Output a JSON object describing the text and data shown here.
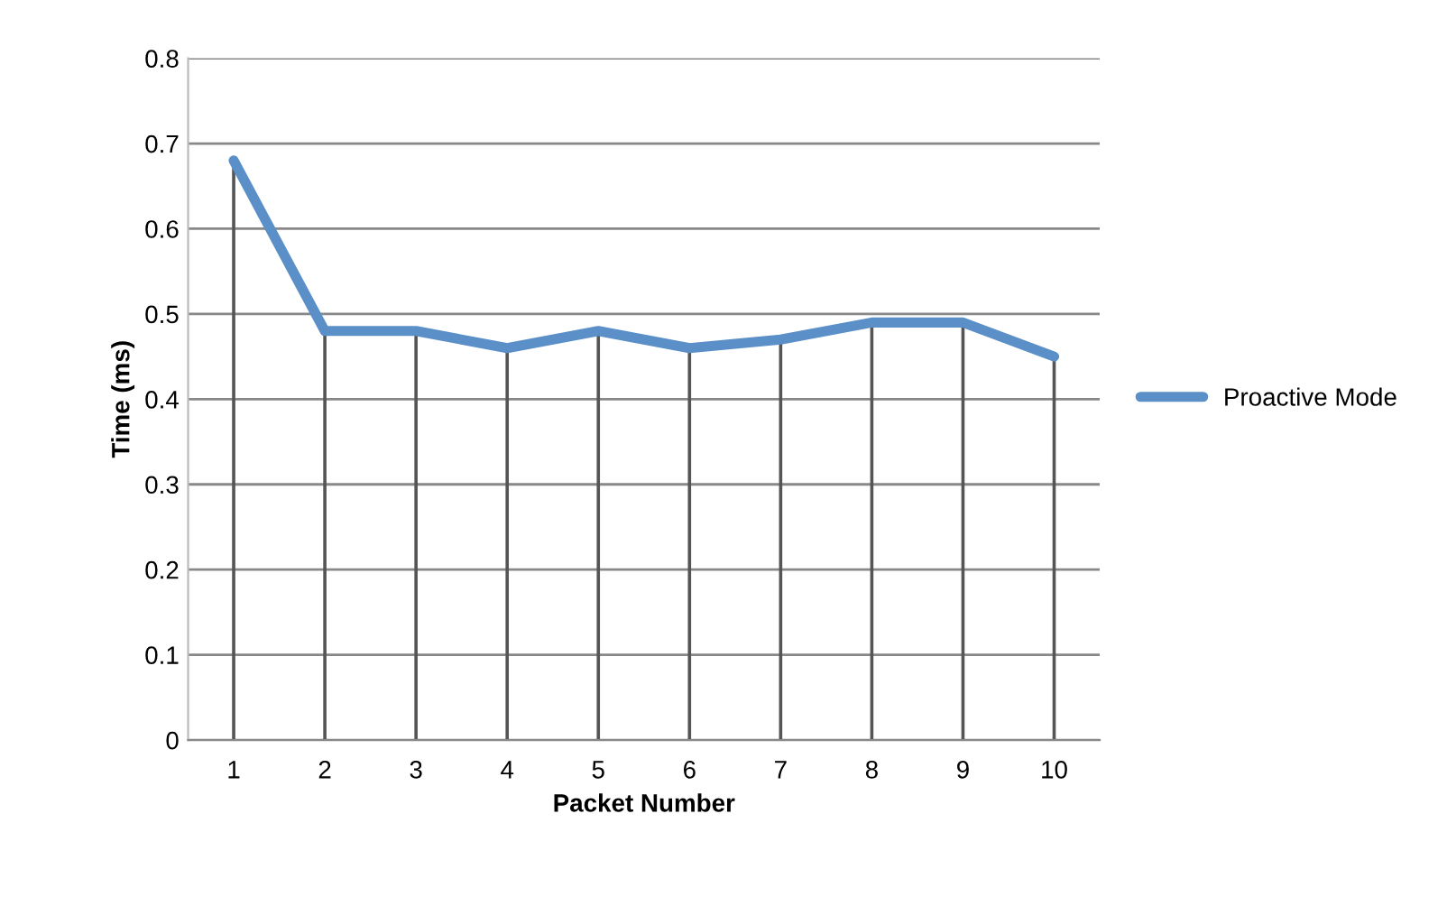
{
  "chart_data": {
    "type": "line",
    "xlabel": "Packet Number",
    "ylabel": "Time (ms)",
    "categories": [
      "1",
      "2",
      "3",
      "4",
      "5",
      "6",
      "7",
      "8",
      "9",
      "10"
    ],
    "series": [
      {
        "name": "Proactive Mode",
        "color": "#5b8fc7",
        "values": [
          0.68,
          0.48,
          0.48,
          0.46,
          0.48,
          0.46,
          0.47,
          0.49,
          0.49,
          0.45
        ],
        "errors": [
          [
            0,
            0.68
          ],
          [
            0,
            0.48
          ],
          [
            0,
            0.48
          ],
          [
            0,
            0.46
          ],
          [
            0,
            0.48
          ],
          [
            0,
            0.46
          ],
          [
            0,
            0.47
          ],
          [
            0,
            0.49
          ],
          [
            0,
            0.49
          ],
          [
            0,
            0.45
          ]
        ]
      }
    ],
    "ylim": [
      0,
      0.8
    ],
    "yticks": [
      0,
      0.1,
      0.2,
      0.3,
      0.4,
      0.5,
      0.6,
      0.7,
      0.8
    ],
    "grid": "y",
    "legend": "right",
    "marker": "none",
    "line_style": "solid"
  }
}
